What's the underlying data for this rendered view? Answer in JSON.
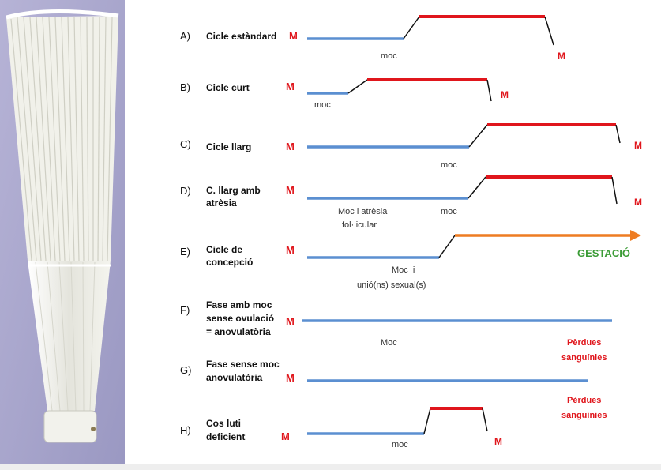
{
  "colors": {
    "blue": "#5b8fd1",
    "red": "#e0161c",
    "orange": "#ee7c22",
    "green": "#3a9b35",
    "black": "#111111",
    "text": "#111111",
    "subtext": "#333333"
  },
  "rows": [
    {
      "id": "A",
      "letter": "A)",
      "title": [
        "Cicle estàndard"
      ],
      "menstruation_label": "M",
      "notes": [
        "moc"
      ],
      "end_label": "M"
    },
    {
      "id": "B",
      "letter": "B)",
      "title": [
        "Cicle curt"
      ],
      "menstruation_label": "M",
      "notes": [
        "moc"
      ],
      "end_label": "M"
    },
    {
      "id": "C",
      "letter": "C)",
      "title": [
        "Cicle llarg"
      ],
      "menstruation_label": "M",
      "notes": [
        "moc"
      ],
      "end_label": "M"
    },
    {
      "id": "D",
      "letter": "D)",
      "title": [
        "C. llarg amb",
        "atrèsia"
      ],
      "menstruation_label": "M",
      "notes": [
        "Moc i atrèsia",
        "fol·licular",
        "moc"
      ],
      "end_label": "M"
    },
    {
      "id": "E",
      "letter": "E)",
      "title": [
        "Cicle de",
        "concepció"
      ],
      "menstruation_label": "M",
      "notes": [
        "Moc  i",
        "unió(ns) sexual(s)"
      ],
      "end_label": "GESTACIÓ"
    },
    {
      "id": "F",
      "letter": "F)",
      "title": [
        "Fase amb moc",
        "sense ovulació",
        "= anovulatòria"
      ],
      "menstruation_label": "M",
      "notes": [
        "Moc"
      ],
      "end_label": [
        "Pèrdues",
        "sanguínies"
      ]
    },
    {
      "id": "G",
      "letter": "G)",
      "title": [
        "Fase sense moc",
        "anovulatòria"
      ],
      "menstruation_label": "M",
      "notes": [],
      "end_label": [
        "Pèrdues",
        "sanguínies"
      ]
    },
    {
      "id": "H",
      "letter": "H)",
      "title": [
        "Cos luti",
        "deficient"
      ],
      "menstruation_label": "M",
      "notes": [
        "moc"
      ],
      "end_label": "M"
    }
  ]
}
